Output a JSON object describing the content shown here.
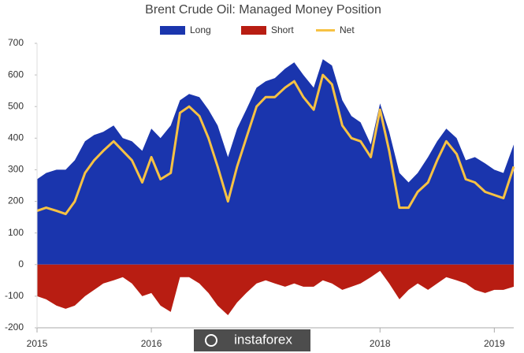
{
  "chart_data": {
    "type": "area",
    "title": "Brent Crude Oil: Managed Money Position",
    "watermark": "instaforex",
    "x": [
      2015.0,
      2015.08,
      2015.17,
      2015.25,
      2015.33,
      2015.42,
      2015.5,
      2015.58,
      2015.67,
      2015.75,
      2015.83,
      2015.92,
      2016.0,
      2016.08,
      2016.17,
      2016.25,
      2016.33,
      2016.42,
      2016.5,
      2016.58,
      2016.67,
      2016.75,
      2016.83,
      2016.92,
      2017.0,
      2017.08,
      2017.17,
      2017.25,
      2017.33,
      2017.42,
      2017.5,
      2017.58,
      2017.67,
      2017.75,
      2017.83,
      2017.92,
      2018.0,
      2018.08,
      2018.17,
      2018.25,
      2018.33,
      2018.42,
      2018.5,
      2018.58,
      2018.67,
      2018.75,
      2018.83,
      2018.92,
      2019.0,
      2019.08,
      2019.17
    ],
    "series": [
      {
        "name": "Long",
        "color": "#1a35ad",
        "style": "area",
        "values": [
          270,
          290,
          300,
          300,
          330,
          390,
          410,
          420,
          440,
          400,
          390,
          360,
          430,
          400,
          440,
          520,
          540,
          530,
          490,
          440,
          340,
          430,
          490,
          560,
          580,
          590,
          620,
          640,
          600,
          560,
          650,
          630,
          520,
          470,
          450,
          380,
          510,
          420,
          290,
          260,
          290,
          340,
          390,
          430,
          400,
          330,
          340,
          320,
          300,
          290,
          380
        ]
      },
      {
        "name": "Short",
        "color": "#b81d12",
        "style": "area",
        "values": [
          -100,
          -110,
          -130,
          -140,
          -130,
          -100,
          -80,
          -60,
          -50,
          -40,
          -60,
          -100,
          -90,
          -130,
          -150,
          -40,
          -40,
          -60,
          -90,
          -130,
          -160,
          -120,
          -90,
          -60,
          -50,
          -60,
          -70,
          -60,
          -70,
          -70,
          -50,
          -60,
          -80,
          -70,
          -60,
          -40,
          -20,
          -60,
          -110,
          -80,
          -60,
          -80,
          -60,
          -40,
          -50,
          -60,
          -80,
          -90,
          -80,
          -80,
          -70
        ]
      },
      {
        "name": "Net",
        "color": "#f7c243",
        "style": "line",
        "values": [
          170,
          180,
          170,
          160,
          200,
          290,
          330,
          360,
          390,
          360,
          330,
          260,
          340,
          270,
          290,
          480,
          500,
          470,
          400,
          310,
          200,
          310,
          400,
          500,
          530,
          530,
          560,
          580,
          530,
          490,
          600,
          570,
          440,
          400,
          390,
          340,
          490,
          360,
          180,
          180,
          230,
          260,
          330,
          390,
          350,
          270,
          260,
          230,
          220,
          210,
          310
        ]
      }
    ],
    "xlim": [
      2015,
      2019.17
    ],
    "xticks": [
      2015,
      2016,
      2018,
      2019
    ],
    "ylim": [
      -200,
      700
    ],
    "yticks": [
      -200,
      -100,
      0,
      100,
      200,
      300,
      400,
      500,
      600,
      700
    ]
  }
}
